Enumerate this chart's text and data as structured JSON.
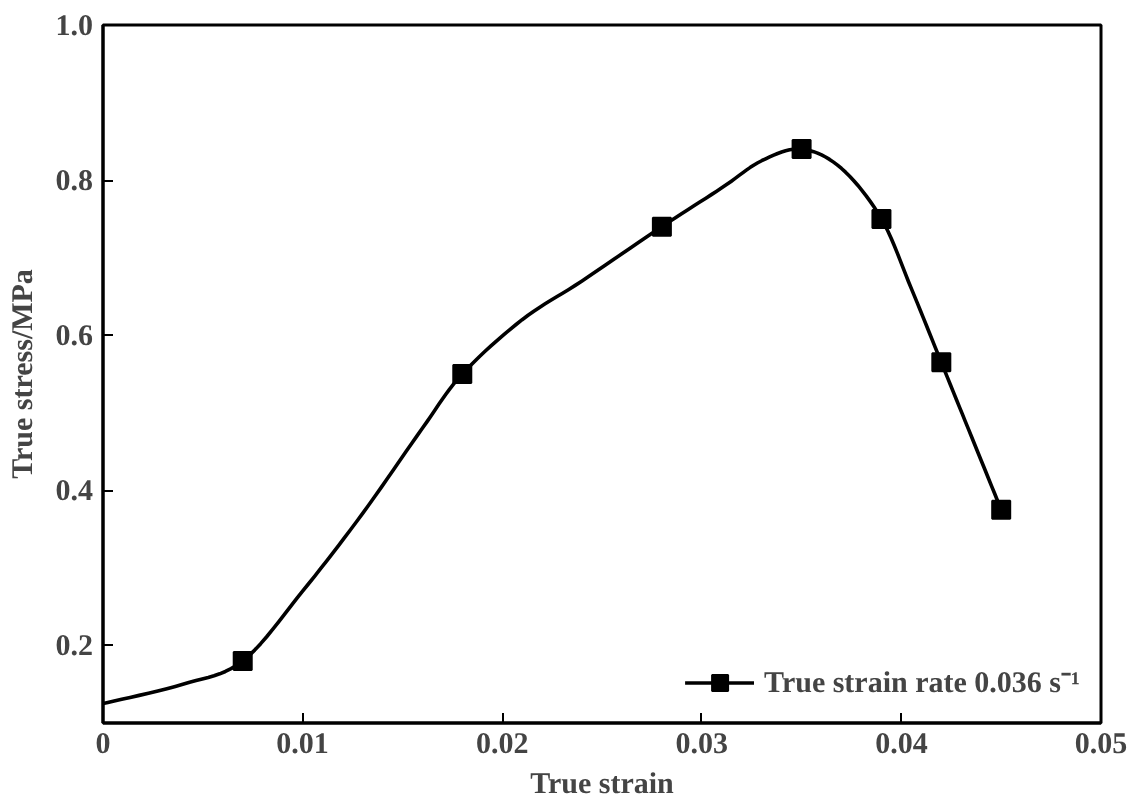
{
  "chart_data": {
    "type": "line",
    "xlabel": "True strain",
    "ylabel": "True stress/MPa",
    "xlim": [
      0,
      0.05
    ],
    "ylim": [
      0.1,
      1.0
    ],
    "xticks": [
      0,
      0.01,
      0.02,
      0.03,
      0.04,
      0.05
    ],
    "yticks": [
      0.2,
      0.4,
      0.6,
      0.8,
      {
        "value": 1.0,
        "label": "1.0"
      }
    ],
    "grid": false,
    "legend": "bottom right",
    "series": [
      {
        "type": "line",
        "color": "#000000",
        "marker": "none",
        "x": [
          0,
          0.004,
          0.007,
          0.01,
          0.013,
          0.016,
          0.018,
          0.021,
          0.024,
          0.028,
          0.031,
          0.033,
          0.035,
          0.037,
          0.039,
          0.0405,
          0.042,
          0.0435,
          0.045
        ],
        "values": [
          0.125,
          0.15,
          0.18,
          0.27,
          0.37,
          0.48,
          0.55,
          0.62,
          0.67,
          0.74,
          0.79,
          0.825,
          0.84,
          0.815,
          0.75,
          0.66,
          0.565,
          0.47,
          0.375
        ]
      },
      {
        "type": "scatter",
        "name": "True strain rate 0.036 s⁻¹",
        "color": "#000000",
        "marker": "square",
        "x": [
          0.007,
          0.018,
          0.028,
          0.035,
          0.039,
          0.042,
          0.045
        ],
        "values": [
          0.18,
          0.55,
          0.74,
          0.84,
          0.75,
          0.565,
          0.375
        ]
      }
    ]
  }
}
